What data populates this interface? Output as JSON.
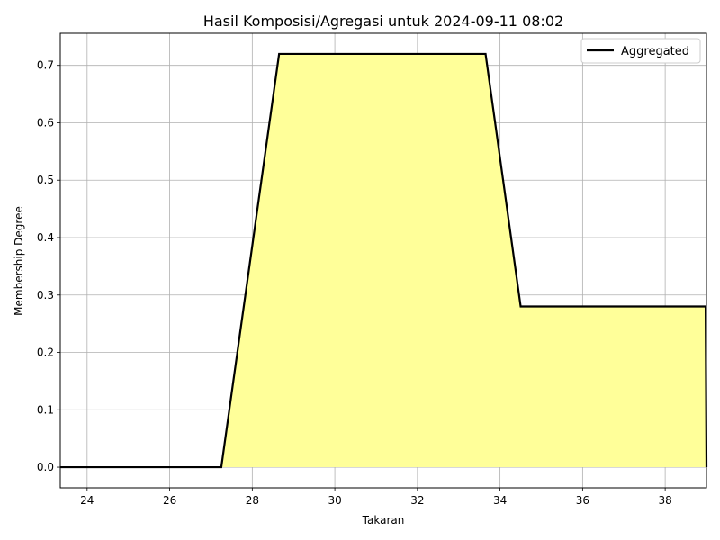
{
  "chart_data": {
    "type": "area",
    "title": "Hasil Komposisi/Agregasi untuk 2024-09-11 08:02",
    "xlabel": "Takaran",
    "ylabel": "Membership Degree",
    "xlim": [
      23.35,
      39.0
    ],
    "ylim": [
      -0.036,
      0.756
    ],
    "xticks": [
      24,
      26,
      28,
      30,
      32,
      34,
      36,
      38
    ],
    "yticks": [
      0.0,
      0.1,
      0.2,
      0.3,
      0.4,
      0.5,
      0.6,
      0.7
    ],
    "xtick_labels": [
      "24",
      "26",
      "28",
      "30",
      "32",
      "34",
      "36",
      "38"
    ],
    "ytick_labels": [
      "0.0",
      "0.1",
      "0.2",
      "0.3",
      "0.4",
      "0.5",
      "0.6",
      "0.7"
    ],
    "grid": true,
    "legend": {
      "position": "top-right",
      "entries": [
        "Aggregated"
      ]
    },
    "series": [
      {
        "name": "Aggregated",
        "color": "#000000",
        "fill_color": "#ffff99",
        "x": [
          23.35,
          27.25,
          28.65,
          33.65,
          34.5,
          38.98,
          39.0
        ],
        "y": [
          0.0,
          0.0,
          0.72,
          0.72,
          0.28,
          0.28,
          0.0
        ]
      }
    ]
  }
}
